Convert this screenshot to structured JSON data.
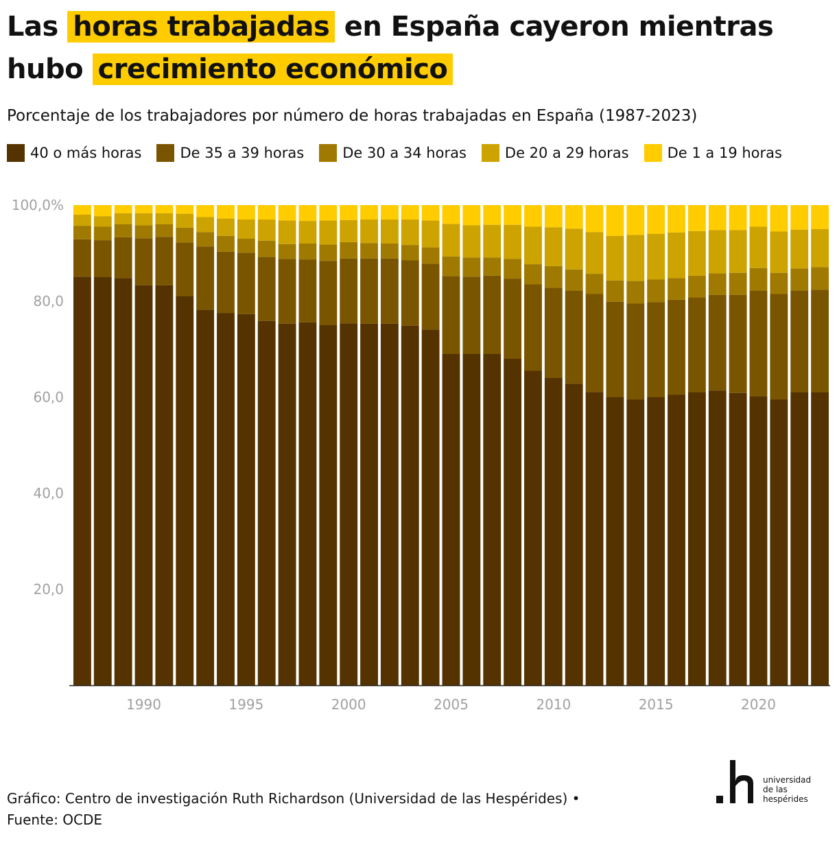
{
  "title": {
    "part1": "Las",
    "highlight1": "horas trabajadas",
    "part2": "en España cayeron mientras hubo",
    "highlight2": "crecimiento económico"
  },
  "subtitle": "Porcentaje de los trabajadores por número de horas trabajadas en España (1987-2023)",
  "footer": {
    "line1": "Gráfico: Centro de investigación Ruth Richardson (Universidad de las Hespérides) •",
    "line2": "Fuente: OCDE"
  },
  "logo": {
    "mark": ".h",
    "line1": "universidad",
    "line2": "de las",
    "line3": "hespérides"
  },
  "chart_data": {
    "type": "bar",
    "stacked": true,
    "x": [
      1987,
      1988,
      1989,
      1990,
      1991,
      1992,
      1993,
      1994,
      1995,
      1996,
      1997,
      1998,
      1999,
      2000,
      2001,
      2002,
      2003,
      2004,
      2005,
      2006,
      2007,
      2008,
      2009,
      2010,
      2011,
      2012,
      2013,
      2014,
      2015,
      2016,
      2017,
      2018,
      2019,
      2020,
      2021,
      2022,
      2023
    ],
    "x_ticks": [
      1990,
      1995,
      2000,
      2005,
      2010,
      2015,
      2020
    ],
    "y_ticks": [
      20,
      40,
      60,
      80,
      100
    ],
    "y_tick_labels": [
      "20,0",
      "40,0",
      "60,0",
      "80,0",
      "100,0%"
    ],
    "ylim": [
      0,
      100
    ],
    "legend_position": "top",
    "series": [
      {
        "name": "40 o más horas",
        "color": "#553300",
        "values": [
          85.1,
          85.0,
          84.8,
          83.3,
          83.3,
          81.0,
          78.2,
          77.5,
          77.3,
          75.9,
          75.3,
          75.6,
          75.0,
          75.4,
          75.3,
          75.3,
          74.9,
          74.1,
          69.0,
          69.0,
          69.0,
          68.0,
          65.5,
          64.0,
          62.8,
          61.1,
          60.0,
          59.5,
          60.0,
          60.5,
          61.0,
          61.4,
          60.9,
          60.2,
          59.5,
          61.0,
          61.0
        ]
      },
      {
        "name": "De 35 a 39 horas",
        "color": "#7a5500",
        "values": [
          7.8,
          7.7,
          8.5,
          9.8,
          10.1,
          11.2,
          13.2,
          12.8,
          12.8,
          13.3,
          13.5,
          13.1,
          13.4,
          13.5,
          13.6,
          13.6,
          13.6,
          13.7,
          16.2,
          16.1,
          16.3,
          16.7,
          18.0,
          18.8,
          19.4,
          20.4,
          19.9,
          20.0,
          19.8,
          19.8,
          19.8,
          19.9,
          20.4,
          22.0,
          22.0,
          21.2,
          21.4
        ]
      },
      {
        "name": "De 30 a 34 horas",
        "color": "#a07a00",
        "values": [
          2.8,
          2.8,
          2.7,
          2.7,
          2.6,
          3.1,
          3.0,
          3.3,
          2.9,
          3.4,
          3.1,
          3.3,
          3.4,
          3.4,
          3.2,
          3.1,
          3.2,
          3.4,
          4.1,
          4.0,
          3.8,
          4.1,
          4.2,
          4.5,
          4.4,
          4.2,
          4.4,
          4.7,
          4.7,
          4.5,
          4.5,
          4.5,
          4.6,
          4.7,
          4.4,
          4.6,
          4.7
        ]
      },
      {
        "name": "De 20 a 29 horas",
        "color": "#cca300",
        "values": [
          2.3,
          2.2,
          2.3,
          2.5,
          2.3,
          2.9,
          3.1,
          3.6,
          4.0,
          4.4,
          4.9,
          4.7,
          5.0,
          4.6,
          4.9,
          5.0,
          5.3,
          5.6,
          6.8,
          6.7,
          6.8,
          7.1,
          7.8,
          8.1,
          8.5,
          8.7,
          9.3,
          9.6,
          9.5,
          9.5,
          9.3,
          9.0,
          8.9,
          8.6,
          8.6,
          8.1,
          7.9
        ]
      },
      {
        "name": "De 1 a 19 horas",
        "color": "#ffcc00",
        "values": [
          2.0,
          2.3,
          1.7,
          1.7,
          1.7,
          1.8,
          2.5,
          2.8,
          3.0,
          3.0,
          3.2,
          3.3,
          3.2,
          3.1,
          3.0,
          3.0,
          3.0,
          3.2,
          3.9,
          4.2,
          4.1,
          4.1,
          4.5,
          4.6,
          4.9,
          5.6,
          6.4,
          6.2,
          6.0,
          5.7,
          5.4,
          5.2,
          5.2,
          4.5,
          5.5,
          5.1,
          5.0
        ]
      }
    ]
  }
}
